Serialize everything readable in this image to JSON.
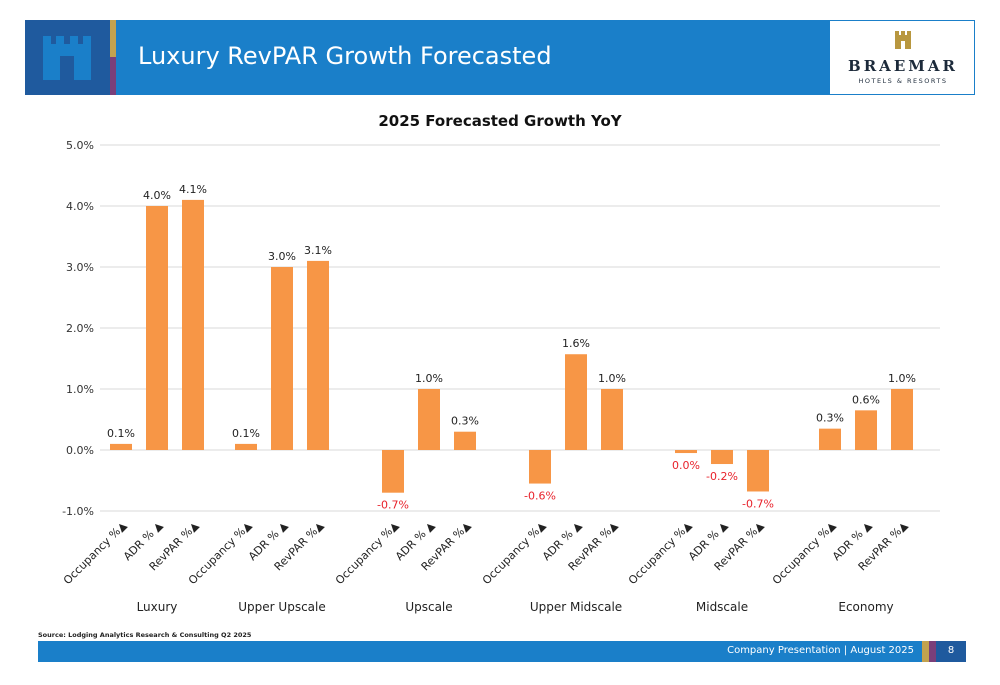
{
  "header": {
    "title": "Luxury RevPAR Growth Forecasted",
    "logo_name": "BRAEMAR",
    "logo_sub": "HOTELS & RESORTS"
  },
  "colors": {
    "header_bar": "#1a7fc9",
    "header_icon_box": "#1f5a9e",
    "gold": "#c2a24f",
    "purple": "#7a3f7a",
    "bar": "#f79646",
    "negative_label": "#e8222b",
    "grid": "#d9d9d9"
  },
  "icons": {
    "header_icon": "castle-icon",
    "logo_icon": "castle-icon"
  },
  "chart_data": {
    "type": "bar",
    "title": "2025 Forecasted Growth YoY",
    "groups": [
      "Luxury",
      "Upper Upscale",
      "Upscale",
      "Upper Midscale",
      "Midscale",
      "Economy"
    ],
    "categories": [
      "Occupancy %▲",
      "ADR % ▲",
      "RevPAR %▲"
    ],
    "values": [
      [
        0.1,
        4.0,
        4.1
      ],
      [
        0.1,
        3.0,
        3.1
      ],
      [
        -0.7,
        1.0,
        0.3
      ],
      [
        -0.55,
        1.57,
        1.0
      ],
      [
        -0.05,
        -0.23,
        -0.68
      ],
      [
        0.35,
        0.65,
        1.0
      ]
    ],
    "data_labels": [
      [
        "0.1%",
        "4.0%",
        "4.1%"
      ],
      [
        "0.1%",
        "3.0%",
        "3.1%"
      ],
      [
        "-0.7%",
        "1.0%",
        "0.3%"
      ],
      [
        "-0.6%",
        "1.6%",
        "1.0%"
      ],
      [
        "0.0%",
        "-0.2%",
        "-0.7%"
      ],
      [
        "0.3%",
        "0.6%",
        "1.0%"
      ]
    ],
    "ylim": [
      -1.0,
      5.0
    ],
    "yticks": [
      -1.0,
      0.0,
      1.0,
      2.0,
      3.0,
      4.0,
      5.0
    ],
    "ytick_labels": [
      "-1.0%",
      "0.0%",
      "1.0%",
      "2.0%",
      "3.0%",
      "4.0%",
      "5.0%"
    ],
    "grid": true,
    "legend": "none"
  },
  "footer": {
    "source": "Source: Lodging Analytics Research & Consulting Q2 2025",
    "text": "Company Presentation | August 2025",
    "page": "8"
  }
}
